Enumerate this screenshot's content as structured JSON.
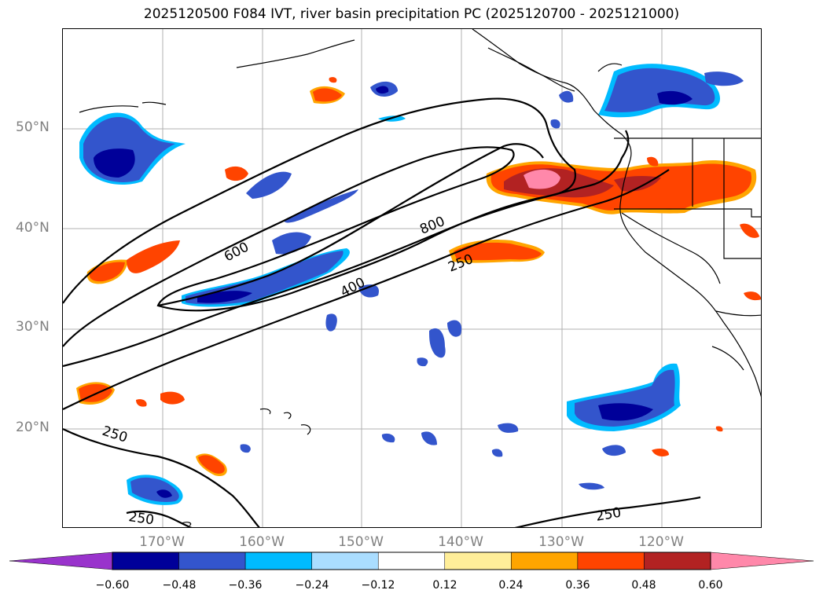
{
  "title": "2025120500 F084 IVT, river basin precipitation PC (2025120700 - 2025121000)",
  "lat_labels": [
    "50°N",
    "40°N",
    "30°N",
    "20°N"
  ],
  "lon_labels": [
    "170°W",
    "160°W",
    "150°W",
    "140°W",
    "130°W",
    "120°W"
  ],
  "contour_labels": [
    "600",
    "800",
    "400",
    "250",
    "250",
    "250",
    "250"
  ],
  "colorbar": {
    "ticks": [
      "−0.60",
      "−0.48",
      "−0.36",
      "−0.24",
      "−0.12",
      "0.12",
      "0.24",
      "0.36",
      "0.48",
      "0.60"
    ],
    "colors": [
      "#9933cc",
      "#000099",
      "#3355cc",
      "#00bbff",
      "#aaddff",
      "#ffffff",
      "#ffee99",
      "#ffa500",
      "#ff4400",
      "#b22222",
      "#ff88aa"
    ]
  }
}
